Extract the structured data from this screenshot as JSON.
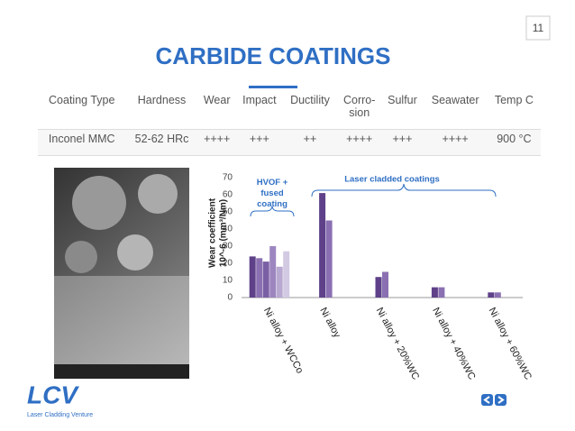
{
  "page_number": "11",
  "title": "CARBIDE COATINGS",
  "table": {
    "header": [
      "Coating Type",
      "Hardness",
      "Wear",
      "Impact",
      "Ductility",
      "Corro-\nsion",
      "Sulfur",
      "Seawater",
      "Temp C"
    ],
    "rows": [
      [
        "Inconel MMC",
        "52-62 HRc",
        "++++",
        "+++",
        "++",
        "++++",
        "+++",
        "++++",
        "900 °C"
      ]
    ]
  },
  "chart_data": {
    "type": "bar",
    "ylabel": [
      "Wear coefficient",
      "10^-6 (mm³/Nm)"
    ],
    "categories": [
      "Ni alloy + WCCo",
      "Ni alloy",
      "Ni alloy + 20%WC",
      "Ni alloy + 40%WC",
      "Ni alloy + 60%WC"
    ],
    "series": [
      {
        "color": "#5e4189",
        "values": [
          24,
          61,
          12,
          6,
          3
        ]
      },
      {
        "color": "#8a70b2",
        "values": [
          23,
          45,
          15,
          6,
          3
        ]
      },
      {
        "color": "#7a5fa5",
        "values": [
          21,
          null,
          null,
          null,
          null
        ]
      },
      {
        "color": "#9d86c0",
        "values": [
          30,
          null,
          null,
          null,
          null
        ]
      },
      {
        "color": "#b8a9d1",
        "values": [
          18,
          null,
          null,
          null,
          null
        ]
      },
      {
        "color": "#d2c9e3",
        "values": [
          27,
          null,
          null,
          null,
          null
        ]
      }
    ],
    "ylim": [
      0,
      70
    ],
    "yticks": [
      0,
      10,
      20,
      30,
      40,
      50,
      60,
      70
    ],
    "grid": false,
    "annotations": [
      "HVOF +\nfused\ncoating",
      "Laser cladded coatings"
    ]
  },
  "logo": {
    "mark": "LCV",
    "tagline": "Laser Cladding Venture"
  }
}
